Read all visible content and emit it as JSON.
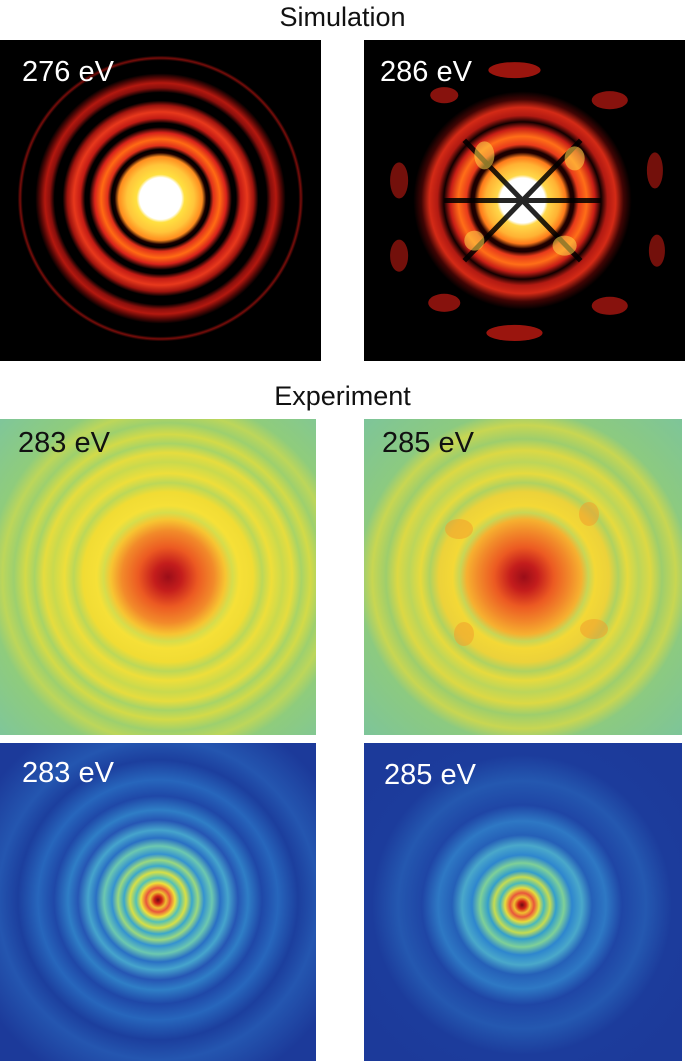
{
  "sections": {
    "simulation": {
      "title": "Simulation"
    },
    "experiment": {
      "title": "Experiment"
    }
  },
  "panels": [
    {
      "id": "sim-276",
      "label": "276 eV",
      "colormap": "hot",
      "pattern": "concentric-rings"
    },
    {
      "id": "sim-286",
      "label": "286 eV",
      "colormap": "hot",
      "pattern": "rings-with-lobes"
    },
    {
      "id": "exp-283-zoom",
      "label": "283 eV",
      "colormap": "jet",
      "pattern": "concentric-rings"
    },
    {
      "id": "exp-285-zoom",
      "label": "285 eV",
      "colormap": "jet",
      "pattern": "rings-with-lobes"
    },
    {
      "id": "exp-283-full",
      "label": "283 eV",
      "colormap": "jet",
      "pattern": "speckle-rings"
    },
    {
      "id": "exp-285-full",
      "label": "285 eV",
      "colormap": "jet",
      "pattern": "speckle-rings"
    }
  ],
  "colors": {
    "hot_background": "#000000",
    "hot_ring": "#c21b14",
    "hot_bright": "#ffd24a",
    "jet_background_light": "#7fcf9c",
    "jet_yellow": "#f2e23a",
    "jet_orange": "#ef7a24",
    "jet_red": "#b5121a",
    "jet_background_dark": "#1c3a9a"
  }
}
